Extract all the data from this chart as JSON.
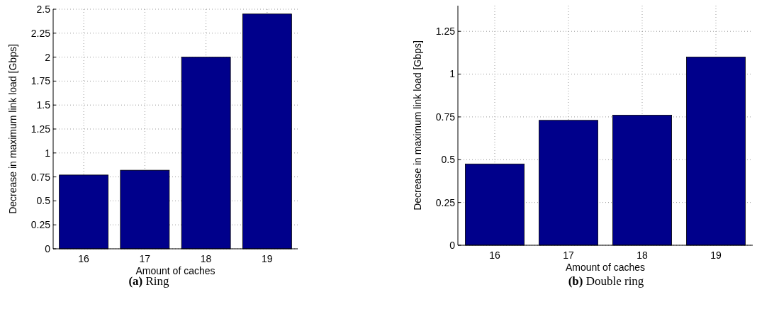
{
  "chart_data": [
    {
      "type": "bar",
      "xlabel": "Amount of caches",
      "ylabel": "Decrease in maximum link load [Gbps]",
      "categories": [
        "16",
        "17",
        "18",
        "19"
      ],
      "values": [
        0.77,
        0.82,
        2.0,
        2.45
      ],
      "color": "#00008b",
      "ylim": [
        0,
        2.5
      ],
      "yticks": [
        0,
        0.25,
        0.5,
        0.75,
        1,
        1.25,
        1.5,
        1.75,
        2,
        2.25,
        2.5
      ],
      "grid": true,
      "annotations": [
        "(a) Ring"
      ]
    },
    {
      "type": "bar",
      "xlabel": "Amount of caches",
      "ylabel": "Decrease in maximum link load [Gbps]",
      "categories": [
        "16",
        "17",
        "18",
        "19"
      ],
      "values": [
        0.475,
        0.73,
        0.76,
        1.1
      ],
      "color": "#00008b",
      "ylim": [
        0,
        1.4
      ],
      "yticks": [
        0,
        0.25,
        0.5,
        0.75,
        1,
        1.25
      ],
      "grid": true,
      "annotations": [
        "(b) Double ring"
      ]
    }
  ]
}
